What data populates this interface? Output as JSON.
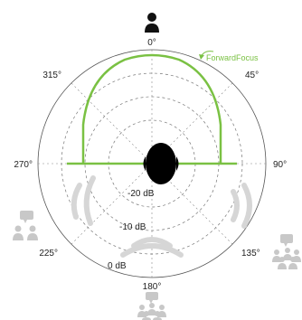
{
  "angles": {
    "a0": "0°",
    "a45": "45°",
    "a90": "90°",
    "a135": "135°",
    "a180": "180°",
    "a225": "225°",
    "a270": "270°",
    "a315": "315°"
  },
  "db_levels": {
    "m20": "-20 dB",
    "m10": "-10 dB",
    "zero": "0 dB"
  },
  "feature": {
    "label": "ForwardFocus"
  },
  "colors": {
    "pattern": "#7ac143",
    "icon_dark": "#111111",
    "icon_light": "#c8c8c8",
    "grid": "#555555"
  }
}
